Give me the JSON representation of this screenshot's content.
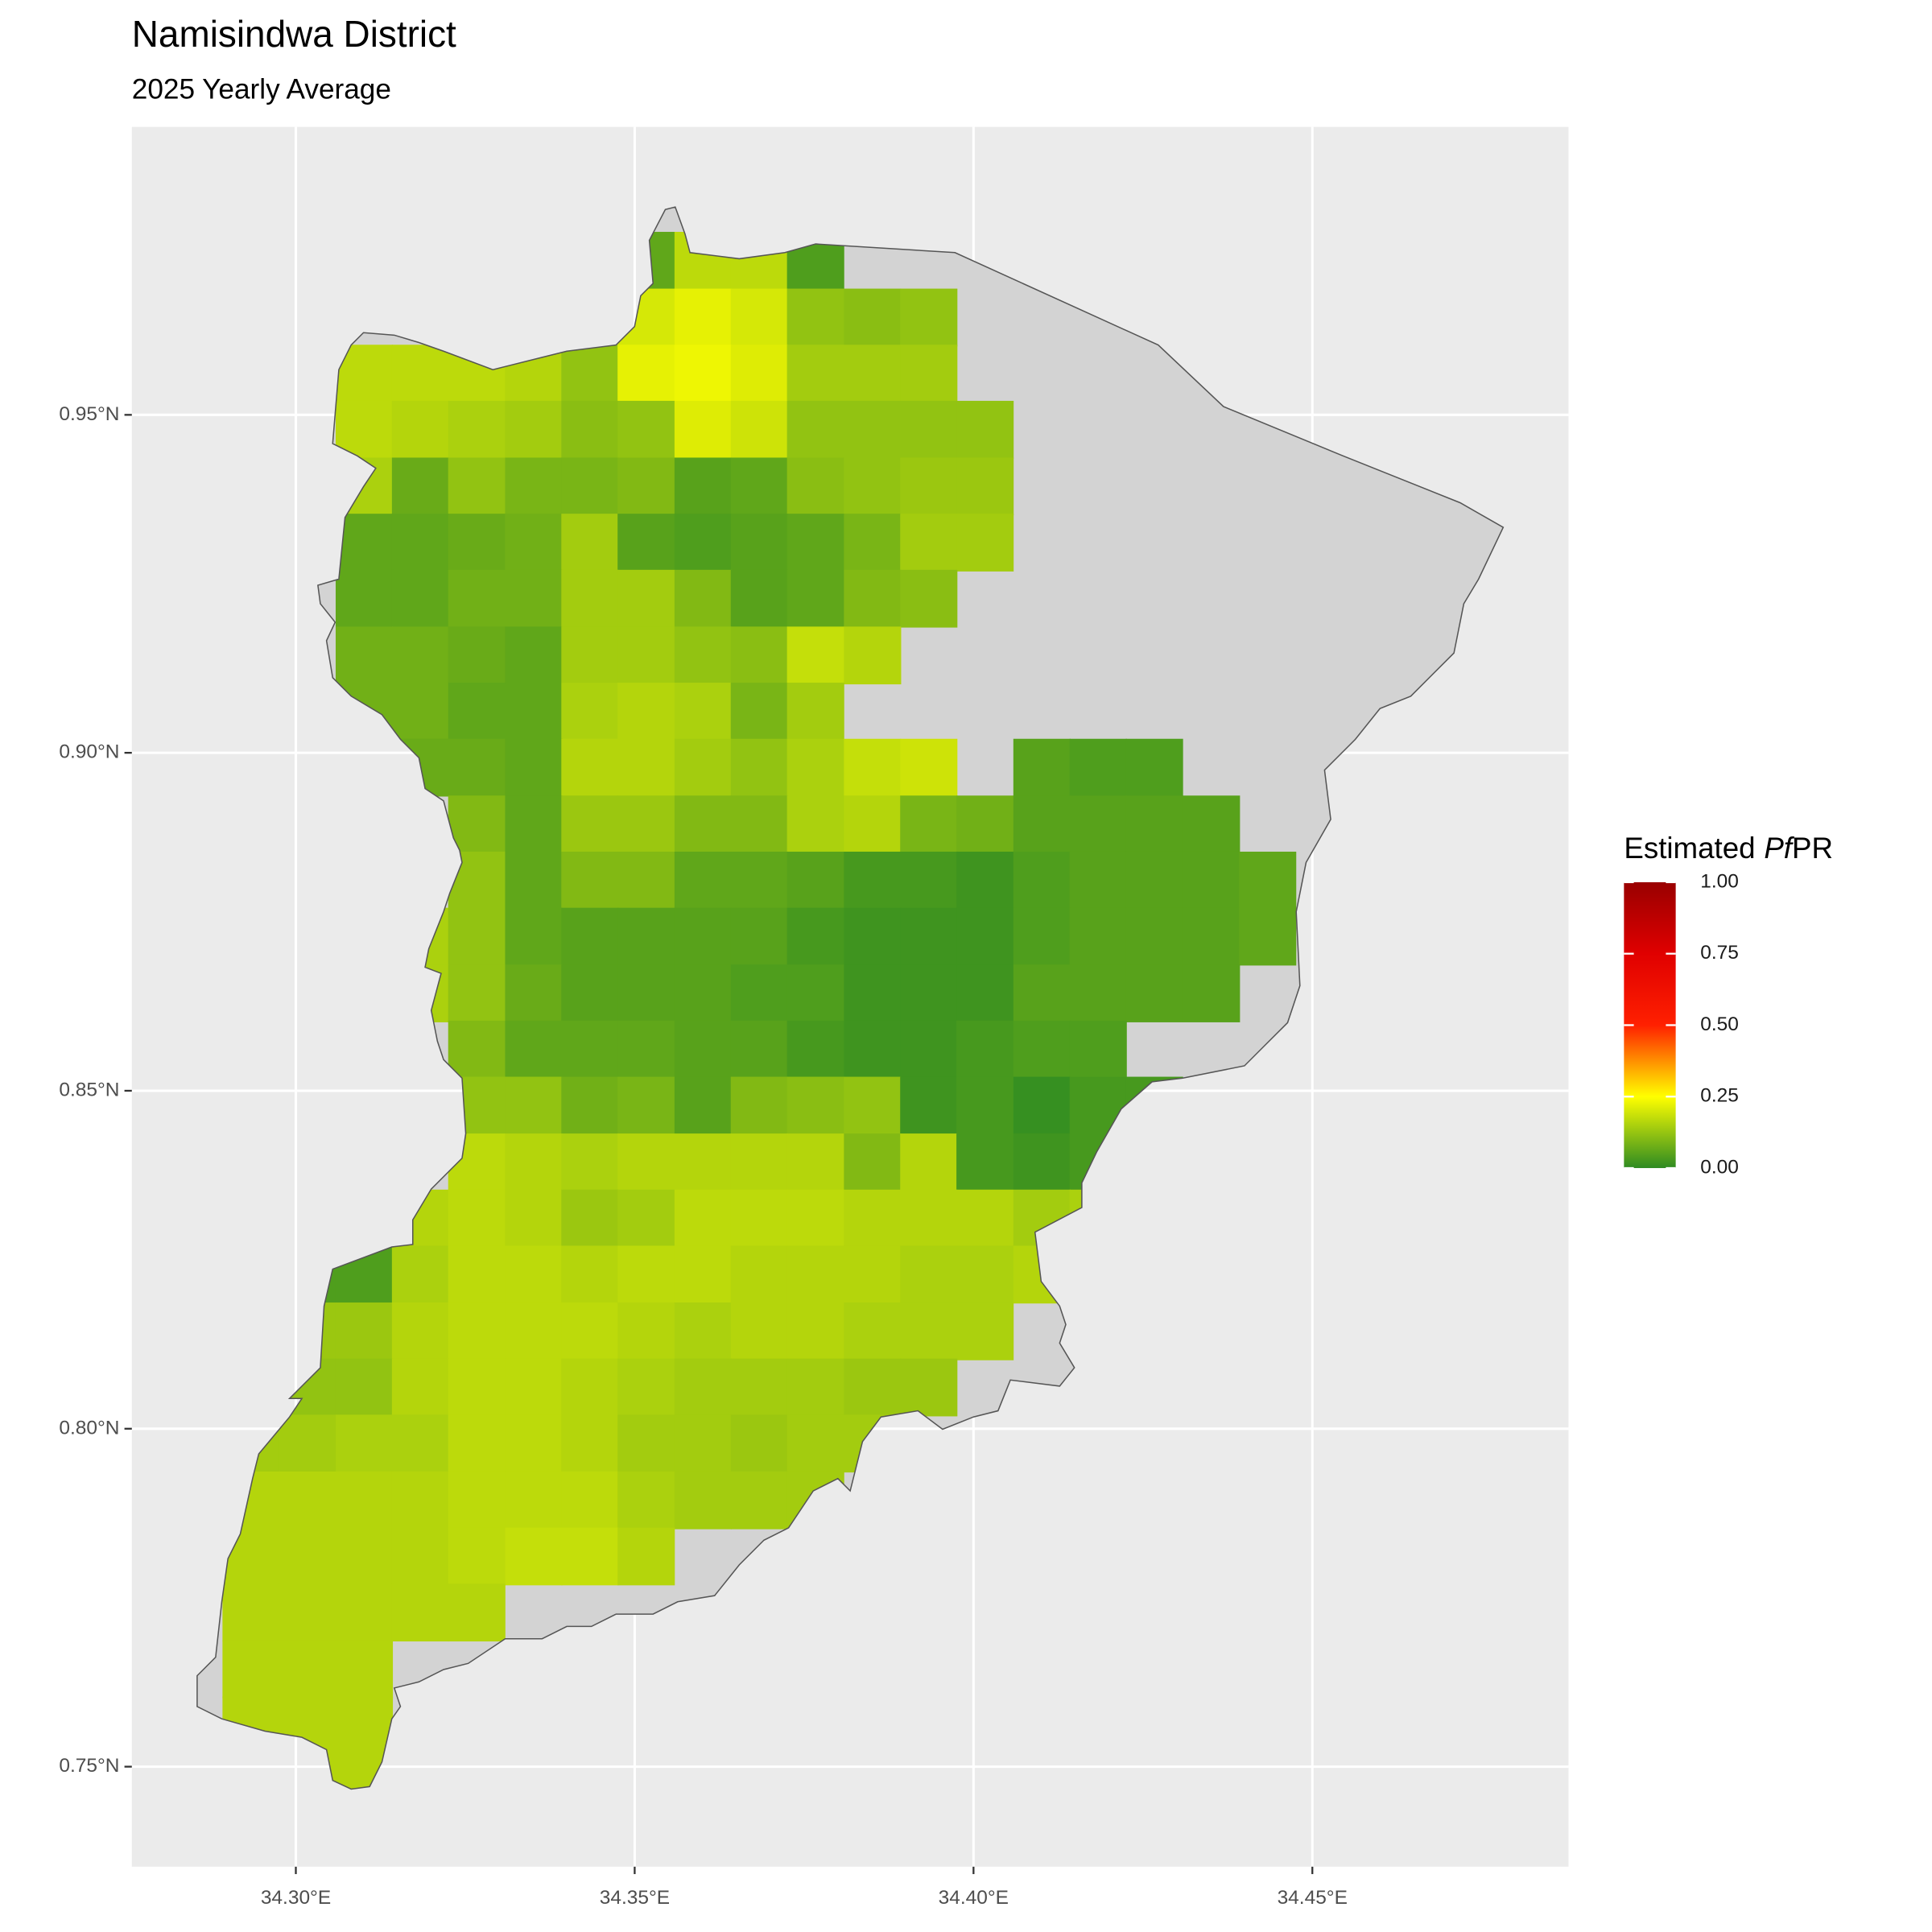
{
  "chart_data": {
    "type": "raster",
    "title": "Namisindwa District",
    "subtitle": "2025 Yearly Average",
    "xlim": [
      34.2758,
      34.4878
    ],
    "ylim": [
      0.7352,
      0.9926
    ],
    "xticks": [
      {
        "value": 34.3,
        "label": "34.30°E"
      },
      {
        "value": 34.35,
        "label": "34.35°E"
      },
      {
        "value": 34.4,
        "label": "34.40°E"
      },
      {
        "value": 34.45,
        "label": "34.45°E"
      }
    ],
    "yticks": [
      {
        "value": 0.75,
        "label": "0.75°N"
      },
      {
        "value": 0.8,
        "label": "0.80°N"
      },
      {
        "value": 0.85,
        "label": "0.85°N"
      },
      {
        "value": 0.9,
        "label": "0.90°N"
      },
      {
        "value": 0.95,
        "label": "0.95°N"
      }
    ],
    "grid": true,
    "x": [
      34.2934,
      34.3017,
      34.3101,
      34.3184,
      34.3267,
      34.3351,
      34.3434,
      34.3517,
      34.3601,
      34.3684,
      34.3767,
      34.3851,
      34.3934,
      34.4017,
      34.4101,
      34.4184,
      34.4267,
      34.4351,
      34.4434
    ],
    "y": [
      0.9728,
      0.9644,
      0.9561,
      0.9478,
      0.9394,
      0.9311,
      0.9228,
      0.9144,
      0.9061,
      0.8978,
      0.8894,
      0.8811,
      0.8728,
      0.8644,
      0.8561,
      0.8478,
      0.8394,
      0.8311,
      0.8228,
      0.8144,
      0.8061,
      0.7978,
      0.7894,
      0.7811,
      0.7728,
      0.7644,
      0.7561,
      0.7478
    ],
    "values": [
      [
        null,
        null,
        null,
        null,
        null,
        null,
        null,
        0.06,
        0.17,
        0.17,
        0.04,
        null,
        null,
        null,
        null,
        null,
        null,
        null,
        null
      ],
      [
        null,
        null,
        null,
        null,
        null,
        null,
        null,
        0.2,
        0.22,
        0.2,
        0.12,
        0.11,
        0.12,
        null,
        null,
        null,
        null,
        null,
        null
      ],
      [
        null,
        null,
        0.17,
        0.17,
        0.17,
        0.16,
        0.12,
        0.22,
        0.23,
        0.21,
        0.14,
        0.14,
        0.14,
        null,
        null,
        null,
        null,
        null,
        null
      ],
      [
        null,
        null,
        0.17,
        0.16,
        0.15,
        0.14,
        0.11,
        0.12,
        0.21,
        0.19,
        0.12,
        0.12,
        0.12,
        0.12,
        null,
        null,
        null,
        null,
        null
      ],
      [
        null,
        null,
        0.15,
        0.07,
        0.12,
        0.09,
        0.09,
        0.1,
        0.05,
        0.06,
        0.11,
        0.12,
        0.13,
        0.13,
        null,
        null,
        null,
        null,
        null
      ],
      [
        null,
        null,
        0.06,
        0.06,
        0.07,
        0.08,
        0.14,
        0.05,
        0.04,
        0.05,
        0.06,
        0.09,
        0.14,
        0.14,
        null,
        null,
        null,
        null,
        null
      ],
      [
        null,
        null,
        0.06,
        0.06,
        0.08,
        0.08,
        0.14,
        0.14,
        0.1,
        0.05,
        0.06,
        0.1,
        0.11,
        null,
        null,
        null,
        null,
        null,
        null
      ],
      [
        null,
        null,
        0.08,
        0.08,
        0.07,
        0.06,
        0.14,
        0.14,
        0.12,
        0.11,
        0.18,
        0.16,
        null,
        null,
        null,
        null,
        null,
        null,
        null
      ],
      [
        null,
        null,
        0.08,
        0.08,
        0.06,
        0.06,
        0.15,
        0.16,
        0.15,
        0.09,
        0.14,
        null,
        null,
        null,
        null,
        null,
        null,
        null,
        null
      ],
      [
        null,
        null,
        null,
        0.07,
        0.07,
        0.06,
        0.16,
        0.16,
        0.14,
        0.12,
        0.15,
        0.18,
        0.19,
        null,
        0.05,
        0.04,
        0.04,
        null,
        null
      ],
      [
        null,
        null,
        null,
        null,
        0.1,
        0.06,
        0.13,
        0.13,
        0.1,
        0.1,
        0.15,
        0.16,
        0.09,
        0.08,
        0.05,
        0.05,
        0.05,
        0.05,
        null
      ],
      [
        null,
        null,
        null,
        null,
        0.12,
        0.06,
        0.1,
        0.1,
        0.06,
        0.06,
        0.05,
        0.03,
        0.03,
        0.02,
        0.04,
        0.05,
        0.05,
        0.05,
        0.06
      ],
      [
        null,
        null,
        null,
        0.15,
        0.12,
        0.06,
        0.05,
        0.05,
        0.05,
        0.05,
        0.03,
        0.02,
        0.02,
        0.02,
        0.04,
        0.05,
        0.05,
        0.05,
        0.06
      ],
      [
        null,
        null,
        null,
        0.15,
        0.12,
        0.07,
        0.05,
        0.05,
        0.05,
        0.04,
        0.04,
        0.02,
        0.02,
        0.02,
        0.05,
        0.05,
        0.05,
        0.05,
        null
      ],
      [
        null,
        null,
        null,
        null,
        0.1,
        0.06,
        0.06,
        0.06,
        0.05,
        0.05,
        0.03,
        0.02,
        0.02,
        0.03,
        0.04,
        0.04,
        null,
        null,
        null
      ],
      [
        null,
        null,
        null,
        null,
        0.12,
        0.12,
        0.08,
        0.09,
        0.05,
        0.1,
        0.11,
        0.12,
        0.02,
        0.03,
        0.01,
        0.03,
        0.03,
        null,
        null
      ],
      [
        null,
        null,
        null,
        null,
        0.17,
        0.16,
        0.15,
        0.16,
        0.16,
        0.16,
        0.16,
        0.1,
        0.16,
        0.03,
        0.02,
        0.03,
        null,
        null,
        null
      ],
      [
        null,
        null,
        null,
        0.16,
        0.17,
        0.16,
        0.13,
        0.14,
        0.17,
        0.17,
        0.17,
        0.16,
        0.16,
        0.16,
        0.14,
        0.15,
        null,
        null,
        null
      ],
      [
        null,
        0.04,
        0.04,
        0.15,
        0.17,
        0.17,
        0.16,
        0.17,
        0.17,
        0.16,
        0.16,
        0.16,
        0.15,
        0.15,
        0.16,
        null,
        null,
        null,
        null
      ],
      [
        null,
        0.13,
        0.13,
        0.16,
        0.17,
        0.17,
        0.17,
        0.16,
        0.15,
        0.16,
        0.16,
        0.15,
        0.15,
        0.15,
        null,
        null,
        null,
        null,
        null
      ],
      [
        null,
        0.12,
        0.12,
        0.16,
        0.17,
        0.17,
        0.16,
        0.15,
        0.14,
        0.14,
        0.14,
        0.13,
        0.13,
        null,
        null,
        null,
        null,
        null,
        null
      ],
      [
        0.14,
        0.14,
        0.15,
        0.15,
        0.17,
        0.17,
        0.16,
        0.14,
        0.14,
        0.13,
        0.14,
        0.14,
        null,
        null,
        null,
        null,
        null,
        null,
        null
      ],
      [
        0.16,
        0.16,
        0.16,
        0.16,
        0.17,
        0.17,
        0.17,
        0.15,
        0.14,
        0.14,
        0.14,
        null,
        null,
        null,
        null,
        null,
        null,
        null,
        null
      ],
      [
        0.16,
        0.16,
        0.16,
        0.16,
        0.17,
        0.18,
        0.18,
        0.16,
        null,
        null,
        null,
        null,
        null,
        null,
        null,
        null,
        null,
        null,
        null
      ],
      [
        0.16,
        0.16,
        0.16,
        0.16,
        0.16,
        null,
        null,
        null,
        null,
        null,
        null,
        null,
        null,
        null,
        null,
        null,
        null,
        null,
        null
      ],
      [
        0.16,
        0.16,
        0.16,
        null,
        null,
        null,
        null,
        null,
        null,
        null,
        null,
        null,
        null,
        null,
        null,
        null,
        null,
        null,
        null
      ],
      [
        0.16,
        0.16,
        0.16,
        null,
        null,
        null,
        null,
        null,
        null,
        null,
        null,
        null,
        null,
        null,
        null,
        null,
        null,
        null,
        null
      ],
      [
        null,
        0.16,
        0.16,
        null,
        null,
        null,
        null,
        null,
        null,
        null,
        null,
        null,
        null,
        null,
        null,
        null,
        null,
        null,
        null
      ]
    ],
    "legend": {
      "title_parts": [
        "Estimated",
        "Pf",
        "PR"
      ],
      "lim": [
        0,
        1
      ],
      "ticks": [
        {
          "value": 0,
          "label": "0.00"
        },
        {
          "value": 0.25,
          "label": "0.25"
        },
        {
          "value": 0.5,
          "label": "0.50"
        },
        {
          "value": 0.75,
          "label": "0.75"
        },
        {
          "value": 1,
          "label": "1.00"
        }
      ],
      "colors": [
        "#2e8b22",
        "#ffff00",
        "#ff2000",
        "#e00000",
        "#990000"
      ]
    }
  }
}
